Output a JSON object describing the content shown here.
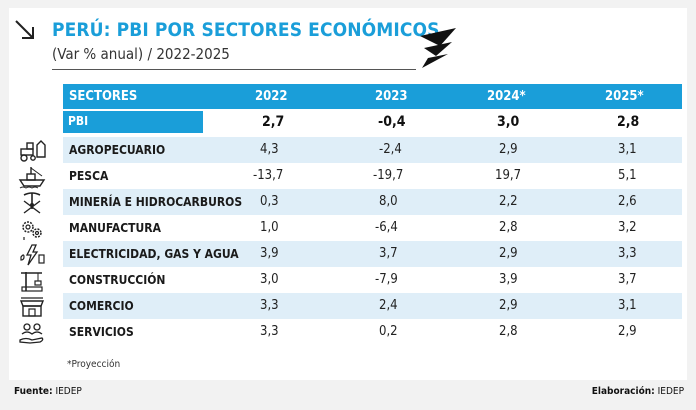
{
  "header": {
    "title": "PERÚ: PBI POR SECTORES ECONÓMICOS",
    "subtitle": "(Var % anual) / 2022-2025"
  },
  "table": {
    "columns": [
      "SECTORES",
      "2022",
      "2023",
      "2024*",
      "2025*"
    ],
    "pbi": {
      "label": "PBI",
      "values": [
        "2,7",
        "-0,4",
        "3,0",
        "2,8"
      ]
    },
    "rows": [
      {
        "sector": "AGROPECUARIO",
        "icon": "tractor-icon",
        "values": [
          "4,3",
          "-2,4",
          "2,9",
          "3,1"
        ]
      },
      {
        "sector": "PESCA",
        "icon": "fishing-boat-icon",
        "values": [
          "-13,7",
          "-19,7",
          "19,7",
          "5,1"
        ]
      },
      {
        "sector": "MINERÍA E HIDROCARBUROS",
        "icon": "mining-tools-icon",
        "values": [
          "0,3",
          "8,0",
          "2,2",
          "2,6"
        ]
      },
      {
        "sector": "MANUFACTURA",
        "icon": "gears-icon",
        "values": [
          "1,0",
          "-6,4",
          "2,8",
          "3,2"
        ]
      },
      {
        "sector": "ELECTRICIDAD, GAS Y AGUA",
        "icon": "utilities-icon",
        "values": [
          "3,9",
          "3,7",
          "2,9",
          "3,3"
        ]
      },
      {
        "sector": "CONSTRUCCIÓN",
        "icon": "crane-icon",
        "values": [
          "3,0",
          "-7,9",
          "3,9",
          "3,7"
        ]
      },
      {
        "sector": "COMERCIO",
        "icon": "store-icon",
        "values": [
          "3,3",
          "2,4",
          "2,9",
          "3,1"
        ]
      },
      {
        "sector": "SERVICIOS",
        "icon": "service-hand-icon",
        "values": [
          "3,3",
          "0,2",
          "2,8",
          "2,9"
        ]
      }
    ],
    "note": "*Proyección"
  },
  "footer": {
    "source_label": "Fuente:",
    "source_value": "IEDEP",
    "credit_label": "Elaboración:",
    "credit_value": "IEDEP"
  },
  "colors": {
    "accent": "#1a9ed9",
    "row_shade": "#dfeef8"
  }
}
